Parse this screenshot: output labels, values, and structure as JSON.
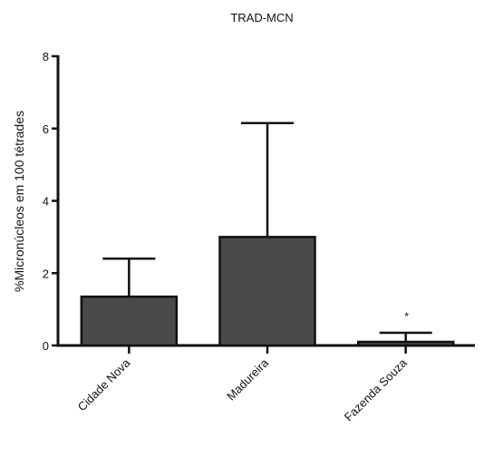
{
  "chart_data": {
    "type": "bar",
    "title": "TRAD-MCN",
    "xlabel": "",
    "ylabel": "%Micronúcleos em 100 tétrades",
    "ylim": [
      0,
      8
    ],
    "yticks": [
      "0",
      "2",
      "4",
      "6",
      "8"
    ],
    "categories": [
      "Cidade Nova",
      "Madureira",
      "Fazenda Souza"
    ],
    "values": [
      1.35,
      3.0,
      0.1
    ],
    "error_upper": [
      2.4,
      6.15,
      0.35
    ],
    "annotations": [
      "",
      "",
      "*"
    ],
    "bar_color": "#4a4a4a",
    "grid": false,
    "legend": "none"
  }
}
